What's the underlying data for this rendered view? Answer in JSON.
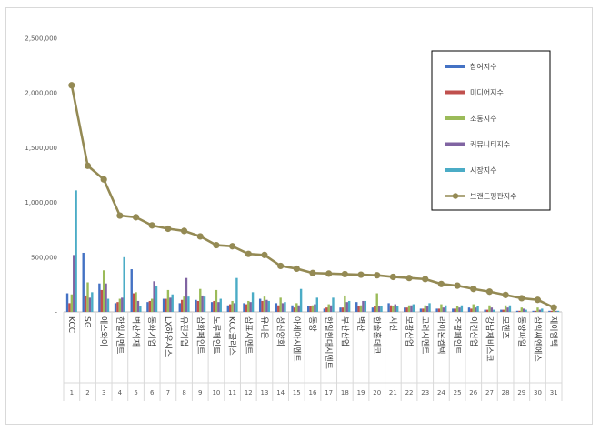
{
  "chart_data": {
    "type": "bar",
    "title": "",
    "xlabel": "",
    "ylabel": "",
    "ylim": [
      0,
      2500000
    ],
    "yticks": [
      0,
      500000,
      1000000,
      1500000,
      2000000,
      2500000
    ],
    "ytick_labels": [
      "-",
      "500,000",
      "1,000,000",
      "1,500,000",
      "2,000,000",
      "2,500,000"
    ],
    "grid": false,
    "legend_position": "top-right",
    "categories": [
      "KCC",
      "SG",
      "에스와이",
      "한일시멘트",
      "벽산석재",
      "동화기업",
      "LX하우시스",
      "유진기업",
      "삼화페인트",
      "노루페인트",
      "KCC글라스",
      "삼표시멘트",
      "유니온",
      "성신양회",
      "아세아시멘트",
      "동양",
      "한일현대시멘트",
      "부산산업",
      "벽산",
      "한솔홈데코",
      "서산",
      "보광산업",
      "고려시멘트",
      "라이온켐텍",
      "조광페인트",
      "이건산업",
      "강남제비스코",
      "모헨즈",
      "동양파일",
      "삼익써엔에스",
      "제이엠텍"
    ],
    "rank_labels": [
      "1",
      "2",
      "3",
      "4",
      "5",
      "6",
      "7",
      "8",
      "9",
      "10",
      "11",
      "12",
      "13",
      "14",
      "15",
      "16",
      "17",
      "18",
      "19",
      "20",
      "21",
      "22",
      "23",
      "24",
      "25",
      "26",
      "27",
      "28",
      "29",
      "30",
      "31"
    ],
    "series": [
      {
        "name": "참여지수",
        "kind": "bar",
        "color": "#4472c4",
        "values": [
          170000,
          540000,
          260000,
          80000,
          390000,
          90000,
          120000,
          80000,
          110000,
          90000,
          60000,
          80000,
          120000,
          80000,
          60000,
          50000,
          30000,
          40000,
          90000,
          40000,
          80000,
          40000,
          30000,
          30000,
          30000,
          40000,
          20000,
          20000,
          10000,
          10000,
          10000
        ]
      },
      {
        "name": "미디어지수",
        "kind": "bar",
        "color": "#c0504d",
        "values": [
          80000,
          150000,
          200000,
          90000,
          170000,
          100000,
          120000,
          110000,
          100000,
          100000,
          70000,
          70000,
          100000,
          60000,
          40000,
          50000,
          40000,
          40000,
          50000,
          50000,
          60000,
          40000,
          30000,
          30000,
          30000,
          30000,
          20000,
          20000,
          10000,
          10000,
          10000
        ]
      },
      {
        "name": "소통지수",
        "kind": "bar",
        "color": "#9bbb59",
        "values": [
          160000,
          270000,
          380000,
          120000,
          180000,
          120000,
          200000,
          140000,
          210000,
          200000,
          100000,
          100000,
          140000,
          130000,
          80000,
          60000,
          70000,
          150000,
          60000,
          170000,
          50000,
          60000,
          60000,
          70000,
          50000,
          70000,
          60000,
          60000,
          40000,
          40000,
          20000
        ]
      },
      {
        "name": "커뮤니티지수",
        "kind": "bar",
        "color": "#8064a2",
        "values": [
          520000,
          130000,
          260000,
          130000,
          100000,
          280000,
          130000,
          310000,
          150000,
          90000,
          80000,
          90000,
          110000,
          80000,
          60000,
          70000,
          60000,
          90000,
          100000,
          50000,
          70000,
          60000,
          50000,
          40000,
          40000,
          40000,
          40000,
          40000,
          30000,
          20000,
          10000
        ]
      },
      {
        "name": "시장지수",
        "kind": "bar",
        "color": "#4bacc6",
        "values": [
          1110000,
          180000,
          120000,
          500000,
          50000,
          240000,
          160000,
          140000,
          140000,
          120000,
          310000,
          180000,
          100000,
          90000,
          210000,
          130000,
          130000,
          100000,
          100000,
          50000,
          50000,
          70000,
          80000,
          60000,
          60000,
          50000,
          20000,
          60000,
          20000,
          30000,
          10000
        ]
      },
      {
        "name": "브랜드평판지수",
        "kind": "line",
        "color": "#948a54",
        "values": [
          2070000,
          1335000,
          1210000,
          880000,
          865000,
          790000,
          760000,
          740000,
          690000,
          610000,
          600000,
          530000,
          520000,
          420000,
          395000,
          355000,
          350000,
          345000,
          340000,
          335000,
          320000,
          310000,
          300000,
          255000,
          240000,
          210000,
          185000,
          155000,
          125000,
          110000,
          40000
        ]
      }
    ]
  }
}
